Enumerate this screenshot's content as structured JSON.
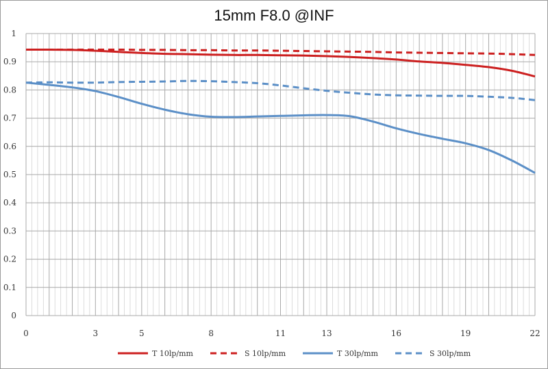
{
  "chart_data": {
    "type": "line",
    "title": "15mm F8.0 @INF",
    "xlabel": "",
    "ylabel": "",
    "xlim": [
      0,
      22
    ],
    "ylim": [
      0,
      1
    ],
    "x_ticks": [
      0,
      3,
      5,
      8,
      11,
      13,
      16,
      19,
      22
    ],
    "y_ticks": [
      "0",
      "0.1",
      "0.2",
      "0.3",
      "0.4",
      "0.5",
      "0.6",
      "0.7",
      "0.8",
      "0.9",
      "1"
    ],
    "grid": true,
    "legend_position": "bottom",
    "x": [
      0,
      1,
      2,
      3,
      4,
      5,
      6,
      7,
      8,
      9,
      10,
      11,
      12,
      13,
      14,
      15,
      16,
      17,
      18,
      19,
      20,
      21,
      22
    ],
    "series": [
      {
        "name": "T 10lp/mm",
        "color": "#cc1f1f",
        "dashed": false,
        "values": [
          0.943,
          0.943,
          0.942,
          0.939,
          0.935,
          0.931,
          0.928,
          0.927,
          0.925,
          0.924,
          0.924,
          0.923,
          0.922,
          0.92,
          0.917,
          0.913,
          0.908,
          0.901,
          0.896,
          0.889,
          0.881,
          0.868,
          0.848
        ]
      },
      {
        "name": "S 10lp/mm",
        "color": "#cc1f1f",
        "dashed": true,
        "values": [
          0.943,
          0.943,
          0.943,
          0.943,
          0.943,
          0.942,
          0.942,
          0.941,
          0.941,
          0.94,
          0.94,
          0.939,
          0.938,
          0.937,
          0.936,
          0.935,
          0.933,
          0.932,
          0.931,
          0.93,
          0.929,
          0.927,
          0.924
        ]
      },
      {
        "name": "T 30lp/mm",
        "color": "#5b8fc7",
        "dashed": false,
        "values": [
          0.826,
          0.818,
          0.809,
          0.796,
          0.775,
          0.751,
          0.73,
          0.714,
          0.705,
          0.704,
          0.706,
          0.708,
          0.71,
          0.711,
          0.707,
          0.688,
          0.664,
          0.644,
          0.627,
          0.611,
          0.587,
          0.55,
          0.506
        ]
      },
      {
        "name": "S 30lp/mm",
        "color": "#5b8fc7",
        "dashed": true,
        "values": [
          0.826,
          0.827,
          0.826,
          0.826,
          0.828,
          0.829,
          0.83,
          0.832,
          0.831,
          0.828,
          0.824,
          0.816,
          0.806,
          0.797,
          0.79,
          0.784,
          0.781,
          0.78,
          0.779,
          0.779,
          0.776,
          0.772,
          0.764
        ]
      }
    ]
  }
}
